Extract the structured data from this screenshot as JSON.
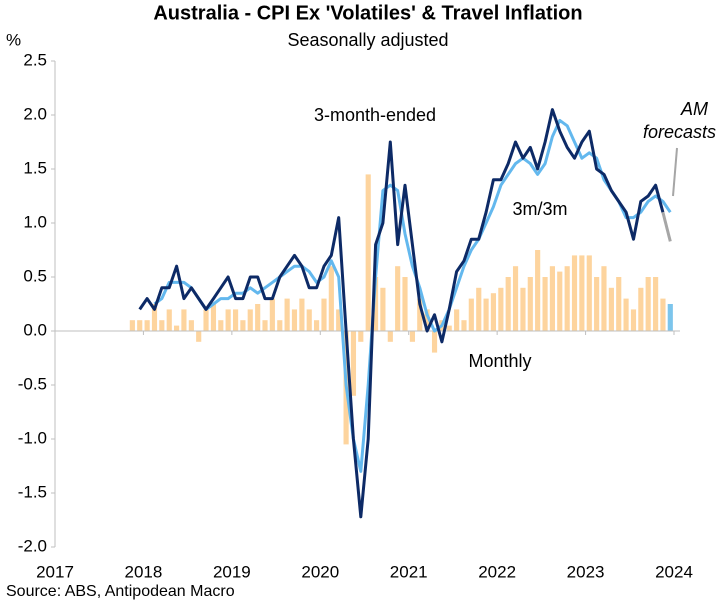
{
  "chart_data": {
    "type": "bar_line",
    "title": "Australia - CPI Ex 'Volatiles' & Travel Inflation",
    "subtitle": "Seasonally adjusted",
    "y_label": "%",
    "source": "Source: ABS, Antipodean Macro",
    "xlim": [
      2017,
      2024
    ],
    "xticks": [
      2017,
      2018,
      2019,
      2020,
      2021,
      2022,
      2023,
      2024
    ],
    "ylim": [
      -2.0,
      2.5
    ],
    "yticks": [
      {
        "value": -2.0,
        "label": "-2.0"
      },
      {
        "value": -1.5,
        "label": "-1.5"
      },
      {
        "value": -1.0,
        "label": "-1.0"
      },
      {
        "value": -0.5,
        "label": "-0.5"
      },
      {
        "value": 0.0,
        "label": "0.0"
      },
      {
        "value": 0.5,
        "label": "0.5"
      },
      {
        "value": 1.0,
        "label": "1.0"
      },
      {
        "value": 1.5,
        "label": "1.5"
      },
      {
        "value": 2.0,
        "label": "2.0"
      },
      {
        "value": 2.5,
        "label": "2.5"
      }
    ],
    "forecast_annotation": [
      "AM",
      "forecasts"
    ],
    "forecast_color": "#a6a6a6",
    "x": [
      2017.875,
      2017.958,
      2018.042,
      2018.125,
      2018.208,
      2018.292,
      2018.375,
      2018.458,
      2018.542,
      2018.625,
      2018.708,
      2018.792,
      2018.875,
      2018.958,
      2019.042,
      2019.125,
      2019.208,
      2019.292,
      2019.375,
      2019.458,
      2019.542,
      2019.625,
      2019.708,
      2019.792,
      2019.875,
      2019.958,
      2020.042,
      2020.125,
      2020.208,
      2020.292,
      2020.375,
      2020.458,
      2020.542,
      2020.625,
      2020.708,
      2020.792,
      2020.875,
      2020.958,
      2021.042,
      2021.125,
      2021.208,
      2021.292,
      2021.375,
      2021.458,
      2021.542,
      2021.625,
      2021.708,
      2021.792,
      2021.875,
      2021.958,
      2022.042,
      2022.125,
      2022.208,
      2022.292,
      2022.375,
      2022.458,
      2022.542,
      2022.625,
      2022.708,
      2022.792,
      2022.875,
      2022.958,
      2023.042,
      2023.125,
      2023.208,
      2023.292,
      2023.375,
      2023.458,
      2023.542,
      2023.625,
      2023.708,
      2023.792,
      2023.875,
      2023.958
    ],
    "series": [
      {
        "name": "Monthly",
        "kind": "bar",
        "color": "#fdd49e",
        "last_color": "#7cc5ec",
        "values": [
          0.1,
          0.1,
          0.1,
          0.25,
          0.1,
          0.2,
          0.05,
          0.2,
          0.1,
          -0.1,
          0.2,
          0.25,
          0.1,
          0.2,
          0.2,
          0.1,
          0.2,
          0.25,
          0.1,
          0.3,
          0.1,
          0.3,
          0.2,
          0.3,
          0.2,
          0.1,
          0.3,
          0.6,
          0.2,
          -1.05,
          -0.6,
          -0.1,
          1.45,
          0.5,
          0.4,
          -0.1,
          0.6,
          0.5,
          -0.1,
          0.3,
          0.2,
          -0.2,
          0.1,
          0.05,
          0.2,
          0.1,
          0.3,
          0.4,
          0.3,
          0.35,
          0.4,
          0.5,
          0.6,
          0.4,
          0.5,
          0.75,
          0.5,
          0.6,
          0.55,
          0.6,
          0.7,
          0.7,
          0.7,
          0.5,
          0.6,
          0.4,
          0.5,
          0.3,
          0.2,
          0.4,
          0.5,
          0.5,
          0.3,
          0.25
        ]
      },
      {
        "name": "3-month-ended",
        "kind": "line",
        "color": "#0d2a66",
        "values": [
          null,
          0.2,
          0.3,
          0.2,
          0.4,
          0.4,
          0.6,
          0.3,
          0.4,
          0.3,
          0.2,
          0.3,
          0.4,
          0.5,
          0.3,
          0.3,
          0.5,
          0.5,
          0.3,
          0.3,
          0.5,
          0.6,
          0.7,
          0.6,
          0.4,
          0.4,
          0.6,
          0.7,
          1.05,
          0.0,
          -1.0,
          -1.72,
          -1.0,
          0.8,
          1.0,
          1.75,
          0.8,
          1.35,
          0.8,
          0.25,
          0.0,
          0.15,
          -0.1,
          0.2,
          0.55,
          0.65,
          0.85,
          0.85,
          1.1,
          1.4,
          1.4,
          1.55,
          1.75,
          1.6,
          1.7,
          1.5,
          1.75,
          2.05,
          1.85,
          1.7,
          1.6,
          1.75,
          1.85,
          1.5,
          1.45,
          1.3,
          1.2,
          1.1,
          0.85,
          1.2,
          1.25,
          1.35,
          1.1,
          null
        ],
        "forecast_values": [
          null,
          null,
          null,
          null,
          null,
          null,
          null,
          null,
          null,
          null,
          null,
          null,
          null,
          null,
          null,
          null,
          null,
          null,
          null,
          null,
          null,
          null,
          null,
          null,
          null,
          null,
          null,
          null,
          null,
          null,
          null,
          null,
          null,
          null,
          null,
          null,
          null,
          null,
          null,
          null,
          null,
          null,
          null,
          null,
          null,
          null,
          null,
          null,
          null,
          null,
          null,
          null,
          null,
          null,
          null,
          null,
          null,
          null,
          null,
          null,
          null,
          null,
          null,
          null,
          null,
          null,
          null,
          null,
          null,
          null,
          null,
          null,
          1.1,
          0.83
        ]
      },
      {
        "name": "3m/3m",
        "kind": "line",
        "color": "#63b8ee",
        "values": [
          null,
          null,
          null,
          0.25,
          0.3,
          0.45,
          0.45,
          0.45,
          0.4,
          0.3,
          0.2,
          0.25,
          0.3,
          0.3,
          0.35,
          0.35,
          0.4,
          0.35,
          0.4,
          0.45,
          0.5,
          0.55,
          0.6,
          0.6,
          0.55,
          0.45,
          0.5,
          0.65,
          0.5,
          -0.5,
          -1.0,
          -1.3,
          -0.5,
          0.5,
          1.3,
          1.35,
          1.3,
          0.9,
          0.6,
          0.4,
          0.15,
          0.0,
          0.05,
          0.2,
          0.4,
          0.6,
          0.75,
          0.85,
          1.0,
          1.15,
          1.35,
          1.45,
          1.55,
          1.6,
          1.55,
          1.45,
          1.55,
          1.8,
          1.95,
          1.9,
          1.75,
          1.6,
          1.65,
          1.6,
          1.4,
          1.3,
          1.2,
          1.05,
          1.05,
          1.1,
          1.2,
          1.25,
          1.2,
          1.1
        ]
      }
    ]
  }
}
